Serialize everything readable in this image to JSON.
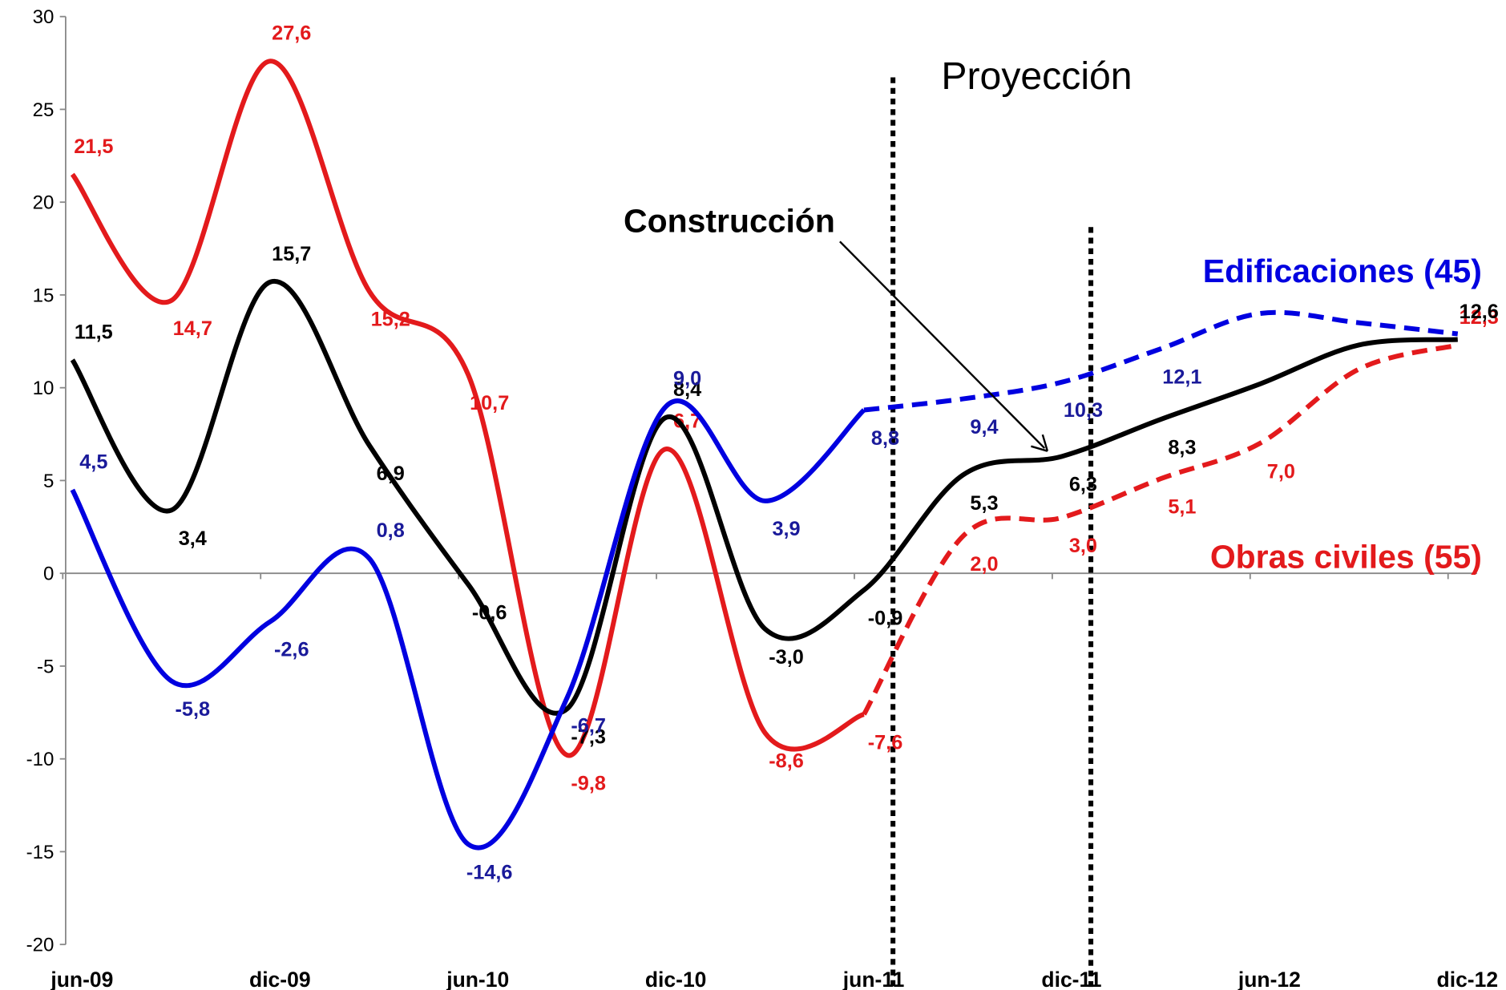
{
  "chart_data": {
    "type": "line",
    "categories": [
      "jun-09",
      null,
      "dic-09",
      null,
      "jun-10",
      null,
      "dic-10",
      null,
      "jun-11",
      null,
      "dic-11",
      null,
      "jun-12",
      null,
      "dic-12"
    ],
    "ylim": [
      -20,
      30
    ],
    "yticks": [
      -20,
      -15,
      -10,
      -5,
      0,
      5,
      10,
      15,
      20,
      25,
      30
    ],
    "projection_markers": [
      "jun-11",
      "dic-11"
    ],
    "projection_label": "Proyección",
    "dash_from": "jun-11",
    "series": [
      {
        "name": "Obras civiles (55)",
        "color": "#e31a1c",
        "label_color": "#e31a1c",
        "dashed_projection": true,
        "values": [
          21.5,
          14.7,
          27.6,
          15.2,
          10.7,
          -9.8,
          6.7,
          -8.6,
          -7.6,
          2.0,
          3.0,
          5.1,
          7.0,
          11.0,
          12.3
        ],
        "value_labels": [
          "21,5",
          "14,7",
          "27,6",
          "15,2",
          "10,7",
          "-9,8",
          "6,7",
          "-8,6",
          "-7,6",
          "2,0",
          "3,0",
          "5,1",
          "7,0",
          null,
          "12,3"
        ]
      },
      {
        "name": "Construcción",
        "color": "#000000",
        "label_color": "#000000",
        "dashed_projection": false,
        "values": [
          11.5,
          3.4,
          15.7,
          6.9,
          -0.6,
          -7.3,
          8.4,
          -3.0,
          -0.9,
          5.3,
          6.3,
          8.3,
          10.2,
          12.3,
          12.6
        ],
        "value_labels": [
          "11,5",
          "3,4",
          "15,7",
          "6,9",
          "-0,6",
          "-7,3",
          "8,4",
          "-3,0",
          "-0,9",
          "5,3",
          "6,3",
          "8,3",
          null,
          null,
          "12,6"
        ]
      },
      {
        "name": "Edificaciones (45)",
        "color": "#0000e0",
        "label_color": "#1a1a9a",
        "dashed_projection": true,
        "values": [
          4.5,
          -5.8,
          -2.6,
          0.8,
          -14.6,
          -6.7,
          9.0,
          3.9,
          8.8,
          9.4,
          10.3,
          12.1,
          14.0,
          13.5,
          12.9
        ],
        "value_labels": [
          "4,5",
          "-5,8",
          "-2,6",
          "0,8",
          "-14,6",
          "-6,7",
          "9,0",
          "3,9",
          "8,8",
          "9,4",
          "10,3",
          "12,1",
          null,
          null,
          null
        ]
      }
    ]
  }
}
